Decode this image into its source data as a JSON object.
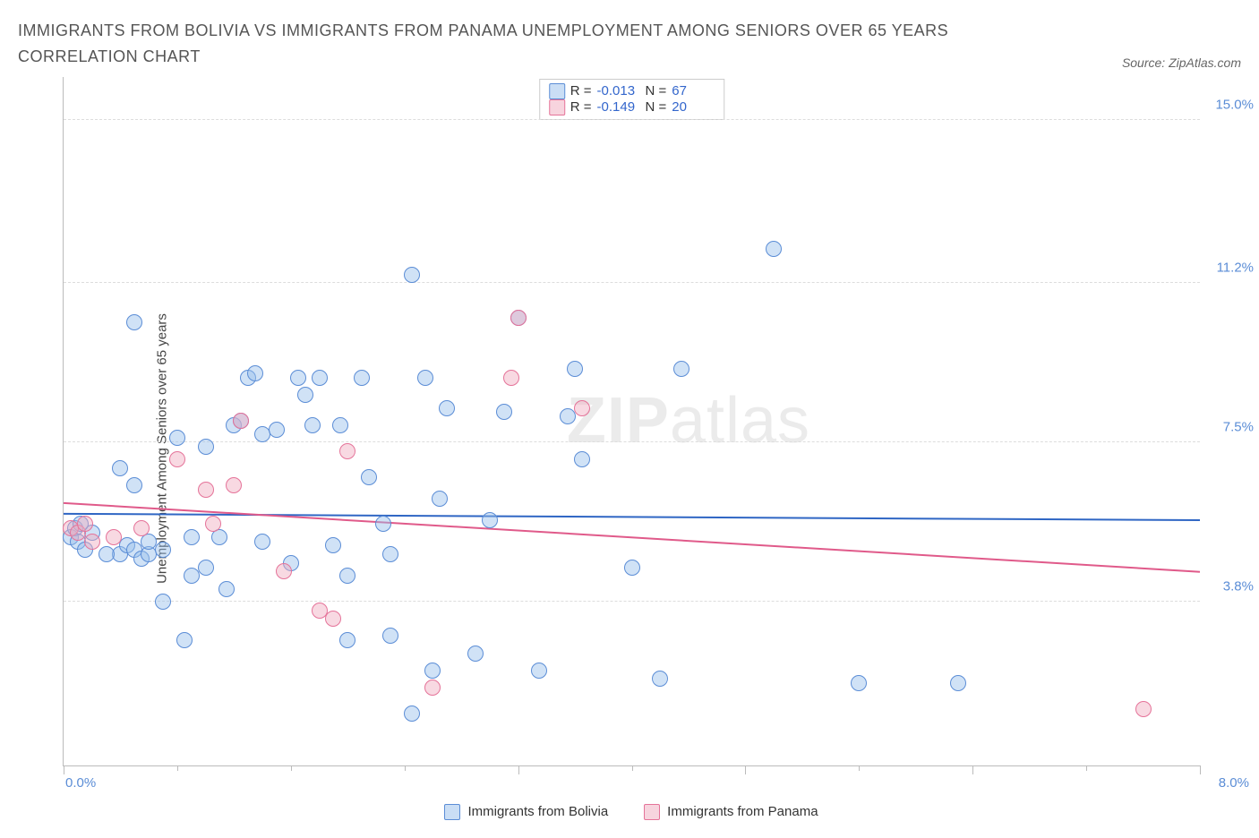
{
  "header": {
    "title": "IMMIGRANTS FROM BOLIVIA VS IMMIGRANTS FROM PANAMA UNEMPLOYMENT AMONG SENIORS OVER 65 YEARS CORRELATION CHART",
    "source": "Source: ZipAtlas.com"
  },
  "watermark": {
    "prefix": "ZIP",
    "suffix": "atlas"
  },
  "chart": {
    "type": "scatter",
    "ylabel": "Unemployment Among Seniors over 65 years",
    "xlim": [
      0.0,
      8.0
    ],
    "ylim": [
      0.0,
      16.0
    ],
    "yticks": [
      {
        "v": 3.8,
        "label": "3.8%"
      },
      {
        "v": 7.5,
        "label": "7.5%"
      },
      {
        "v": 11.2,
        "label": "11.2%"
      },
      {
        "v": 15.0,
        "label": "15.0%"
      }
    ],
    "xticks_major": [
      0.0,
      3.2,
      4.8,
      6.4,
      8.0
    ],
    "xticks_minor": [
      0.8,
      1.6,
      2.4,
      4.0,
      5.6,
      7.2
    ],
    "xlabels": [
      {
        "v": 0.0,
        "label": "0.0%"
      },
      {
        "v": 8.0,
        "label": "8.0%"
      }
    ],
    "marker_radius": 9,
    "background_color": "#ffffff",
    "grid_color": "#dddddd",
    "axis_color": "#bbbbbb",
    "tick_label_color": "#5b8dd6",
    "series": {
      "bolivia": {
        "label": "Immigrants from Bolivia",
        "fill": "rgba(150,190,235,0.45)",
        "stroke": "#5b8dd6",
        "R": "-0.013",
        "N": "67",
        "trend": {
          "y_at_xmin": 5.85,
          "y_at_xmax": 5.7,
          "color": "#2f66c4",
          "width": 2
        },
        "points": [
          [
            0.05,
            5.3
          ],
          [
            0.08,
            5.5
          ],
          [
            0.1,
            5.2
          ],
          [
            0.15,
            5.0
          ],
          [
            0.2,
            5.4
          ],
          [
            0.12,
            5.6
          ],
          [
            0.4,
            6.9
          ],
          [
            0.4,
            4.9
          ],
          [
            0.5,
            6.5
          ],
          [
            0.45,
            5.1
          ],
          [
            0.5,
            5.0
          ],
          [
            0.55,
            4.8
          ],
          [
            0.6,
            4.9
          ],
          [
            0.5,
            10.3
          ],
          [
            0.7,
            5.0
          ],
          [
            0.7,
            3.8
          ],
          [
            0.8,
            7.6
          ],
          [
            0.9,
            5.3
          ],
          [
            0.85,
            2.9
          ],
          [
            1.0,
            4.6
          ],
          [
            1.0,
            7.4
          ],
          [
            1.1,
            5.3
          ],
          [
            1.15,
            4.1
          ],
          [
            1.2,
            7.9
          ],
          [
            1.25,
            8.0
          ],
          [
            1.3,
            9.0
          ],
          [
            1.35,
            9.1
          ],
          [
            1.4,
            7.7
          ],
          [
            1.5,
            7.8
          ],
          [
            1.6,
            4.7
          ],
          [
            1.65,
            9.0
          ],
          [
            1.7,
            8.6
          ],
          [
            1.75,
            7.9
          ],
          [
            1.8,
            9.0
          ],
          [
            1.9,
            5.1
          ],
          [
            1.95,
            7.9
          ],
          [
            2.0,
            4.4
          ],
          [
            2.0,
            2.9
          ],
          [
            2.1,
            9.0
          ],
          [
            2.15,
            6.7
          ],
          [
            2.25,
            5.6
          ],
          [
            2.3,
            4.9
          ],
          [
            2.3,
            3.0
          ],
          [
            2.45,
            11.4
          ],
          [
            2.45,
            1.2
          ],
          [
            2.55,
            9.0
          ],
          [
            2.6,
            2.2
          ],
          [
            2.65,
            6.2
          ],
          [
            2.7,
            8.3
          ],
          [
            2.9,
            2.6
          ],
          [
            3.0,
            5.7
          ],
          [
            3.1,
            8.2
          ],
          [
            3.2,
            10.4
          ],
          [
            3.35,
            2.2
          ],
          [
            3.6,
            9.2
          ],
          [
            3.55,
            8.1
          ],
          [
            3.65,
            7.1
          ],
          [
            4.0,
            4.6
          ],
          [
            4.2,
            2.0
          ],
          [
            4.35,
            9.2
          ],
          [
            5.0,
            12.0
          ],
          [
            5.6,
            1.9
          ],
          [
            6.3,
            1.9
          ],
          [
            0.3,
            4.9
          ],
          [
            0.6,
            5.2
          ],
          [
            0.9,
            4.4
          ],
          [
            1.4,
            5.2
          ]
        ]
      },
      "panama": {
        "label": "Immigrants from Panama",
        "fill": "rgba(240,170,190,0.45)",
        "stroke": "#e57399",
        "R": "-0.149",
        "N": "20",
        "trend": {
          "y_at_xmin": 6.1,
          "y_at_xmax": 4.5,
          "color": "#e05a8a",
          "width": 2
        },
        "points": [
          [
            0.05,
            5.5
          ],
          [
            0.1,
            5.4
          ],
          [
            0.15,
            5.6
          ],
          [
            0.2,
            5.2
          ],
          [
            0.55,
            5.5
          ],
          [
            0.8,
            7.1
          ],
          [
            1.0,
            6.4
          ],
          [
            1.05,
            5.6
          ],
          [
            1.2,
            6.5
          ],
          [
            1.25,
            8.0
          ],
          [
            1.55,
            4.5
          ],
          [
            1.8,
            3.6
          ],
          [
            1.9,
            3.4
          ],
          [
            2.0,
            7.3
          ],
          [
            2.6,
            1.8
          ],
          [
            3.15,
            9.0
          ],
          [
            3.2,
            10.4
          ],
          [
            3.65,
            8.3
          ],
          [
            7.6,
            1.3
          ],
          [
            0.35,
            5.3
          ]
        ]
      }
    },
    "legend_stats": {
      "R_label": "R =",
      "N_label": "N ="
    }
  }
}
